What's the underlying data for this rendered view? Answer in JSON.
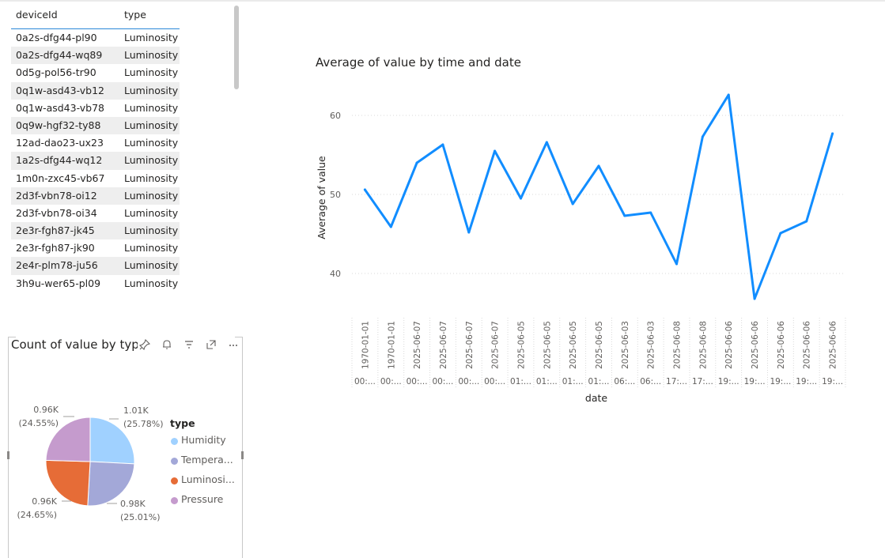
{
  "table": {
    "headers": {
      "device_id": "deviceId",
      "type": "type"
    },
    "rows": [
      {
        "device_id": "0a2s-dfg44-pl90",
        "type": "Luminosity"
      },
      {
        "device_id": "0a2s-dfg44-wq89",
        "type": "Luminosity"
      },
      {
        "device_id": "0d5g-pol56-tr90",
        "type": "Luminosity"
      },
      {
        "device_id": "0q1w-asd43-vb12",
        "type": "Luminosity"
      },
      {
        "device_id": "0q1w-asd43-vb78",
        "type": "Luminosity"
      },
      {
        "device_id": "0q9w-hgf32-ty88",
        "type": "Luminosity"
      },
      {
        "device_id": "12ad-dao23-ux23",
        "type": "Luminosity"
      },
      {
        "device_id": "1a2s-dfg44-wq12",
        "type": "Luminosity"
      },
      {
        "device_id": "1m0n-zxc45-vb67",
        "type": "Luminosity"
      },
      {
        "device_id": "2d3f-vbn78-oi12",
        "type": "Luminosity"
      },
      {
        "device_id": "2d3f-vbn78-oi34",
        "type": "Luminosity"
      },
      {
        "device_id": "2e3r-fgh87-jk45",
        "type": "Luminosity"
      },
      {
        "device_id": "2e3r-fgh87-jk90",
        "type": "Luminosity"
      },
      {
        "device_id": "2e4r-plm78-ju56",
        "type": "Luminosity"
      },
      {
        "device_id": "3h9u-wer65-pl09",
        "type": "Luminosity"
      }
    ]
  },
  "pie_visual": {
    "title": "Count of value by typ",
    "icons": [
      "pin-icon",
      "bell-icon",
      "filter-icon",
      "focus-mode-icon",
      "more-options-icon"
    ],
    "legend_title": "type",
    "legend_items": [
      {
        "label": "Humidity",
        "color": "#a0d1ff"
      },
      {
        "label": "Tempera...",
        "color": "#a3a8d8"
      },
      {
        "label": "Luminosi...",
        "color": "#e66c37"
      },
      {
        "label": "Pressure",
        "color": "#c59bcd"
      }
    ]
  },
  "line_visual": {
    "title": "Average of value by time and date"
  },
  "chart_data": [
    {
      "type": "pie",
      "title": "Count of value by typ",
      "legend_title": "type",
      "legend_position": "right",
      "slices": [
        {
          "name": "Humidity",
          "value": 1010,
          "value_label": "1.01K",
          "percent_label": "(25.78%)",
          "color": "#a0d1ff"
        },
        {
          "name": "Tempera...",
          "value": 980,
          "value_label": "0.98K",
          "percent_label": "(25.01%)",
          "color": "#a3a8d8"
        },
        {
          "name": "Luminosi...",
          "value": 960,
          "value_label": "0.96K",
          "percent_label": "(24.65%)",
          "color": "#e66c37"
        },
        {
          "name": "Pressure",
          "value": 960,
          "value_label": "0.96K",
          "percent_label": "(24.55%)",
          "color": "#c59bcd"
        }
      ]
    },
    {
      "type": "line",
      "title": "Average of value by time and date",
      "xlabel": "date",
      "ylabel": "Average of value",
      "ylim": [
        36,
        64
      ],
      "yticks": [
        40,
        50,
        60
      ],
      "grid": true,
      "line_color": "#118dff",
      "x": [
        {
          "date": "1970-01-01",
          "time": "00:..."
        },
        {
          "date": "1970-01-01",
          "time": "00:..."
        },
        {
          "date": "2025-06-07",
          "time": "00:..."
        },
        {
          "date": "2025-06-07",
          "time": "00:..."
        },
        {
          "date": "2025-06-07",
          "time": "00:..."
        },
        {
          "date": "2025-06-07",
          "time": "00:..."
        },
        {
          "date": "2025-06-05",
          "time": "01:..."
        },
        {
          "date": "2025-06-05",
          "time": "01:..."
        },
        {
          "date": "2025-06-05",
          "time": "01:..."
        },
        {
          "date": "2025-06-05",
          "time": "01:..."
        },
        {
          "date": "2025-06-03",
          "time": "06:..."
        },
        {
          "date": "2025-06-03",
          "time": "06:..."
        },
        {
          "date": "2025-06-08",
          "time": "17:..."
        },
        {
          "date": "2025-06-08",
          "time": "17:..."
        },
        {
          "date": "2025-06-06",
          "time": "19:..."
        },
        {
          "date": "2025-06-06",
          "time": "19:..."
        },
        {
          "date": "2025-06-06",
          "time": "19:..."
        },
        {
          "date": "2025-06-06",
          "time": "19:..."
        },
        {
          "date": "2025-06-06",
          "time": "19:..."
        }
      ],
      "y": [
        50.6,
        45.9,
        54.0,
        56.3,
        45.2,
        55.5,
        49.5,
        56.6,
        48.8,
        53.6,
        47.3,
        47.7,
        41.2,
        57.3,
        62.6,
        36.8,
        45.1,
        46.6,
        57.7
      ]
    }
  ]
}
